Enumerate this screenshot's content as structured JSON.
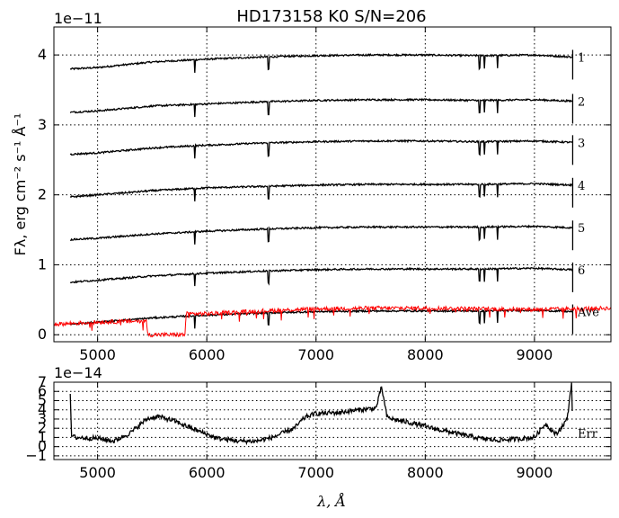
{
  "chart_data": [
    {
      "type": "line",
      "title": "HD173158  K0  S/N=206",
      "ylabel": "Fλ, erg cm⁻² s⁻¹ Å⁻¹",
      "y_offset_text": "1e−11",
      "xlim": [
        4600,
        9700
      ],
      "ylim": [
        -0.1,
        4.4
      ],
      "y_units": "1e-11",
      "x_ticks": [
        5000,
        6000,
        7000,
        8000,
        9000
      ],
      "x_tick_labels": [
        "5000",
        "6000",
        "7000",
        "8000",
        "9000"
      ],
      "y_ticks": [
        0,
        1,
        2,
        3,
        4
      ],
      "y_tick_labels": [
        "0",
        "1",
        "2",
        "3",
        "4"
      ],
      "grid": true,
      "line_x_range": [
        4750,
        9350
      ],
      "series": [
        {
          "name": "1",
          "color": "#000000",
          "x": [
            4750,
            5000,
            5500,
            6000,
            6500,
            7000,
            7500,
            8000,
            8500,
            9000,
            9350
          ],
          "y": [
            3.8,
            3.82,
            3.9,
            3.94,
            3.97,
            3.99,
            4.0,
            4.0,
            3.99,
            4.0,
            3.97
          ]
        },
        {
          "name": "2",
          "color": "#000000",
          "x": [
            4750,
            5000,
            5500,
            6000,
            6500,
            7000,
            7500,
            8000,
            8500,
            9000,
            9350
          ],
          "y": [
            3.18,
            3.2,
            3.27,
            3.3,
            3.33,
            3.35,
            3.36,
            3.36,
            3.35,
            3.36,
            3.34
          ]
        },
        {
          "name": "3",
          "color": "#000000",
          "x": [
            4750,
            5000,
            5500,
            6000,
            6500,
            7000,
            7500,
            8000,
            8500,
            9000,
            9350
          ],
          "y": [
            2.58,
            2.6,
            2.67,
            2.71,
            2.74,
            2.76,
            2.77,
            2.77,
            2.76,
            2.77,
            2.75
          ]
        },
        {
          "name": "4",
          "color": "#000000",
          "x": [
            4750,
            5000,
            5500,
            6000,
            6500,
            7000,
            7500,
            8000,
            8500,
            9000,
            9350
          ],
          "y": [
            1.97,
            2.0,
            2.06,
            2.1,
            2.12,
            2.14,
            2.15,
            2.15,
            2.15,
            2.16,
            2.14
          ]
        },
        {
          "name": "5",
          "color": "#000000",
          "x": [
            4750,
            5000,
            5500,
            6000,
            6500,
            7000,
            7500,
            8000,
            8500,
            9000,
            9350
          ],
          "y": [
            1.36,
            1.38,
            1.44,
            1.48,
            1.51,
            1.53,
            1.54,
            1.54,
            1.54,
            1.55,
            1.53
          ]
        },
        {
          "name": "6",
          "color": "#000000",
          "x": [
            4750,
            5000,
            5500,
            6000,
            6500,
            7000,
            7500,
            8000,
            8500,
            9000,
            9350
          ],
          "y": [
            0.75,
            0.78,
            0.84,
            0.88,
            0.91,
            0.93,
            0.94,
            0.94,
            0.94,
            0.95,
            0.93
          ]
        },
        {
          "name": "Ave",
          "color": "#000000",
          "x": [
            4750,
            5000,
            5500,
            6000,
            6500,
            7000,
            7500,
            8000,
            8500,
            9000,
            9350
          ],
          "y": [
            0.15,
            0.18,
            0.24,
            0.28,
            0.31,
            0.33,
            0.34,
            0.34,
            0.34,
            0.35,
            0.33
          ]
        },
        {
          "name": "",
          "color": "#ff0000",
          "x": [
            4600,
            5000,
            5450,
            5460,
            5800,
            5810,
            6000,
            6500,
            7000,
            7500,
            8000,
            8500,
            9000,
            9700
          ],
          "y": [
            0.15,
            0.18,
            0.2,
            0.0,
            0.0,
            0.3,
            0.3,
            0.34,
            0.37,
            0.38,
            0.38,
            0.37,
            0.36,
            0.38
          ]
        }
      ],
      "series_labels": [
        "1",
        "2",
        "3",
        "4",
        "5",
        "6",
        "Ave"
      ]
    },
    {
      "type": "line",
      "y_offset_text": "1e−14",
      "xlabel": "λ, Å",
      "xlim": [
        4600,
        9700
      ],
      "ylim": [
        -1.4,
        7
      ],
      "y_units": "1e-14",
      "x_ticks": [
        5000,
        6000,
        7000,
        8000,
        9000
      ],
      "x_tick_labels": [
        "5000",
        "6000",
        "7000",
        "8000",
        "9000"
      ],
      "y_ticks": [
        -1,
        0,
        1,
        2,
        3,
        4,
        5,
        6,
        7
      ],
      "y_tick_labels": [
        "−1",
        "0",
        "1",
        "2",
        "3",
        "4",
        "5",
        "6",
        "7"
      ],
      "grid": true,
      "series": [
        {
          "name": "Err",
          "color": "#000000",
          "x": [
            4750,
            4760,
            4800,
            5000,
            5150,
            5300,
            5450,
            5550,
            5700,
            5900,
            6100,
            6300,
            6450,
            6600,
            6800,
            6900,
            7000,
            7200,
            7400,
            7550,
            7600,
            7650,
            7700,
            7900,
            8100,
            8300,
            8500,
            8650,
            8800,
            9000,
            9100,
            9200,
            9300,
            9340,
            9350
          ],
          "y": [
            5.5,
            1.2,
            1.0,
            0.9,
            0.6,
            1.5,
            3.0,
            3.3,
            2.8,
            1.8,
            0.9,
            0.6,
            0.6,
            1.0,
            2.0,
            3.2,
            3.6,
            3.7,
            4.0,
            4.2,
            6.5,
            3.2,
            3.0,
            2.5,
            1.9,
            1.4,
            0.9,
            0.7,
            0.8,
            1.0,
            2.5,
            1.3,
            3.0,
            7.0,
            1.5
          ]
        }
      ],
      "series_labels": [
        "Err"
      ]
    }
  ]
}
